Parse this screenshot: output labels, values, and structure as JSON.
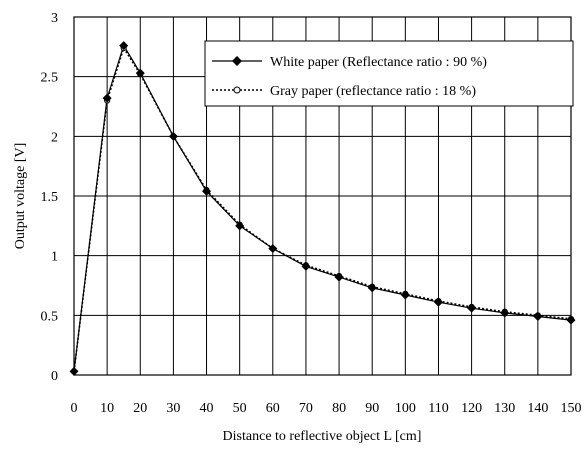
{
  "chart_data": {
    "type": "line",
    "xlabel": "Distance to reflective object L [cm]",
    "ylabel": "Output voltage [V]",
    "xlim": [
      0,
      150
    ],
    "ylim": [
      0,
      3
    ],
    "x_ticks": [
      0,
      10,
      20,
      30,
      40,
      50,
      60,
      70,
      80,
      90,
      100,
      110,
      120,
      130,
      140,
      150
    ],
    "y_ticks": [
      0,
      0.5,
      1,
      1.5,
      2,
      2.5,
      3
    ],
    "grid": true,
    "legend_position": "top-right",
    "x": [
      0,
      10,
      15,
      20,
      30,
      40,
      50,
      60,
      70,
      80,
      90,
      100,
      110,
      120,
      130,
      140,
      150
    ],
    "series": [
      {
        "name": "White paper (Reflectance ratio : 90 %)",
        "line_style": "solid",
        "marker": "diamond",
        "color": "#000000",
        "values": [
          0.03,
          2.32,
          2.76,
          2.53,
          2.0,
          1.54,
          1.25,
          1.06,
          0.91,
          0.82,
          0.73,
          0.67,
          0.61,
          0.56,
          0.52,
          0.49,
          0.46
        ]
      },
      {
        "name": "Gray paper (reflectance ratio : 18 %)",
        "line_style": "dotted",
        "marker": "circle",
        "color": "#000000",
        "values": [
          0.03,
          2.3,
          2.74,
          2.52,
          2.0,
          1.55,
          1.26,
          1.06,
          0.92,
          0.83,
          0.74,
          0.68,
          0.62,
          0.57,
          0.53,
          0.5,
          0.47
        ]
      }
    ]
  }
}
